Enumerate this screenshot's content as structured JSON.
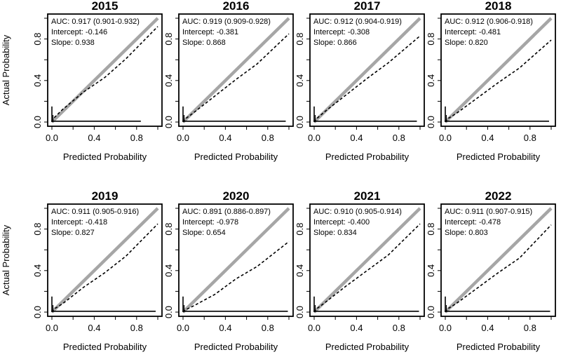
{
  "common": {
    "xlabel": "Predicted Probability",
    "ylabel": "Actual Probability",
    "xticks": [
      "0.0",
      "0.4",
      "0.8"
    ],
    "yticks": [
      "0.0",
      "0.4",
      "0.8"
    ],
    "auc_prefix": "AUC:",
    "intercept_prefix": "Intercept:",
    "slope_prefix": "Slope:"
  },
  "chart_data": [
    {
      "type": "line",
      "title": "2015",
      "auc": "0.917 (0.901-0.932)",
      "intercept": "-0.146",
      "slope": "0.938",
      "xlim": [
        0,
        1
      ],
      "ylim": [
        0,
        1
      ],
      "series": [
        {
          "style": "ideal",
          "x": [
            0,
            1
          ],
          "y": [
            0,
            1
          ]
        },
        {
          "style": "dashed",
          "x": [
            0,
            0.02,
            0.1,
            0.3,
            0.5,
            0.7,
            1.0
          ],
          "y": [
            0,
            0.04,
            0.12,
            0.29,
            0.43,
            0.61,
            0.92
          ]
        }
      ],
      "spike": {
        "x": 0,
        "y": 0.15
      },
      "baseline_x_end": 0.84
    },
    {
      "type": "line",
      "title": "2016",
      "auc": "0.919 (0.909-0.928)",
      "intercept": "-0.381",
      "slope": "0.868",
      "xlim": [
        0,
        1
      ],
      "ylim": [
        0,
        1
      ],
      "series": [
        {
          "style": "ideal",
          "x": [
            0,
            1
          ],
          "y": [
            0,
            1
          ]
        },
        {
          "style": "dashed",
          "x": [
            0,
            0.02,
            0.1,
            0.3,
            0.5,
            0.7,
            1.0
          ],
          "y": [
            0,
            0.03,
            0.09,
            0.25,
            0.41,
            0.56,
            0.85
          ]
        }
      ],
      "spike": {
        "x": 0,
        "y": 0.15
      },
      "baseline_x_end": 0.97
    },
    {
      "type": "line",
      "title": "2017",
      "auc": "0.912 (0.904-0.919)",
      "intercept": "-0.308",
      "slope": "0.866",
      "xlim": [
        0,
        1
      ],
      "ylim": [
        0,
        1
      ],
      "series": [
        {
          "style": "ideal",
          "x": [
            0,
            1
          ],
          "y": [
            0,
            1
          ]
        },
        {
          "style": "dashed",
          "x": [
            0,
            0.02,
            0.1,
            0.3,
            0.5,
            0.7,
            1.0
          ],
          "y": [
            0,
            0.03,
            0.1,
            0.26,
            0.42,
            0.57,
            0.83
          ]
        }
      ],
      "spike": {
        "x": 0,
        "y": 0.15
      },
      "baseline_x_end": 0.97
    },
    {
      "type": "line",
      "title": "2018",
      "auc": "0.912 (0.906-0.918)",
      "intercept": "-0.481",
      "slope": "0.820",
      "xlim": [
        0,
        1
      ],
      "ylim": [
        0,
        1
      ],
      "series": [
        {
          "style": "ideal",
          "x": [
            0,
            1
          ],
          "y": [
            0,
            1
          ]
        },
        {
          "style": "dashed",
          "x": [
            0,
            0.02,
            0.1,
            0.3,
            0.5,
            0.7,
            1.0
          ],
          "y": [
            0,
            0.03,
            0.08,
            0.23,
            0.38,
            0.52,
            0.79
          ]
        }
      ],
      "spike": {
        "x": 0,
        "y": 0.15
      },
      "baseline_x_end": 0.98
    },
    {
      "type": "line",
      "title": "2019",
      "auc": "0.911 (0.905-0.916)",
      "intercept": "-0.418",
      "slope": "0.827",
      "xlim": [
        0,
        1
      ],
      "ylim": [
        0,
        1
      ],
      "series": [
        {
          "style": "ideal",
          "x": [
            0,
            1
          ],
          "y": [
            0,
            1
          ]
        },
        {
          "style": "dashed",
          "x": [
            0,
            0.02,
            0.1,
            0.3,
            0.5,
            0.7,
            1.0
          ],
          "y": [
            0,
            0.03,
            0.08,
            0.24,
            0.38,
            0.54,
            0.85
          ]
        }
      ],
      "spike": {
        "x": 0,
        "y": 0.15
      },
      "baseline_x_end": 0.98
    },
    {
      "type": "line",
      "title": "2020",
      "auc": "0.891 (0.886-0.897)",
      "intercept": "-0.978",
      "slope": "0.654",
      "xlim": [
        0,
        1
      ],
      "ylim": [
        0,
        1
      ],
      "series": [
        {
          "style": "ideal",
          "x": [
            0,
            1
          ],
          "y": [
            0,
            1
          ]
        },
        {
          "style": "dashed",
          "x": [
            0,
            0.02,
            0.1,
            0.3,
            0.5,
            0.7,
            1.0
          ],
          "y": [
            0,
            0.02,
            0.06,
            0.17,
            0.32,
            0.44,
            0.68
          ]
        }
      ],
      "spike": {
        "x": 0,
        "y": 0.15
      },
      "baseline_x_end": 0.99
    },
    {
      "type": "line",
      "title": "2021",
      "auc": "0.910 (0.905-0.914)",
      "intercept": "-0.400",
      "slope": "0.834",
      "xlim": [
        0,
        1
      ],
      "ylim": [
        0,
        1
      ],
      "series": [
        {
          "style": "ideal",
          "x": [
            0,
            1
          ],
          "y": [
            0,
            1
          ]
        },
        {
          "style": "dashed",
          "x": [
            0,
            0.02,
            0.1,
            0.3,
            0.5,
            0.7,
            1.0
          ],
          "y": [
            0,
            0.03,
            0.09,
            0.25,
            0.4,
            0.55,
            0.85
          ]
        }
      ],
      "spike": {
        "x": 0,
        "y": 0.15
      },
      "baseline_x_end": 0.99
    },
    {
      "type": "line",
      "title": "2022",
      "auc": "0.911 (0.907-0.915)",
      "intercept": "-0.478",
      "slope": "0.803",
      "xlim": [
        0,
        1
      ],
      "ylim": [
        0,
        1
      ],
      "series": [
        {
          "style": "ideal",
          "x": [
            0,
            1
          ],
          "y": [
            0,
            1
          ]
        },
        {
          "style": "dashed",
          "x": [
            0,
            0.02,
            0.1,
            0.3,
            0.5,
            0.7,
            1.0
          ],
          "y": [
            0,
            0.03,
            0.08,
            0.23,
            0.38,
            0.52,
            0.84
          ]
        }
      ],
      "spike": {
        "x": 0,
        "y": 0.15
      },
      "baseline_x_end": 0.99
    }
  ]
}
